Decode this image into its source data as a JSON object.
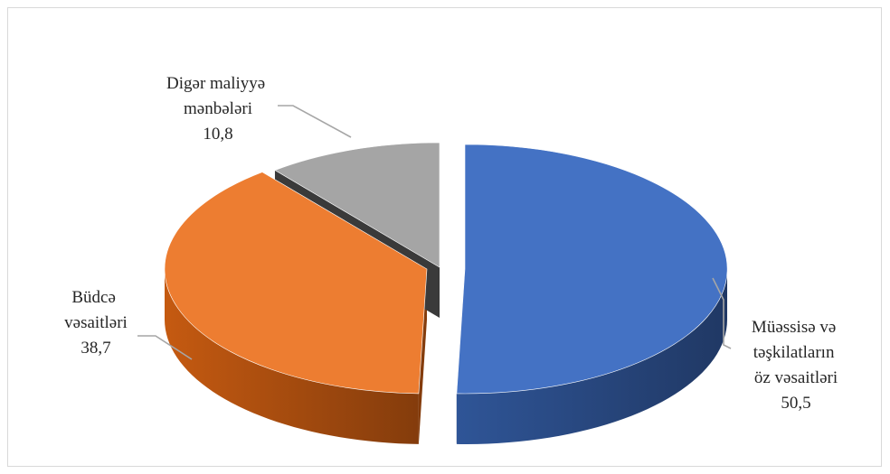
{
  "chart_data": {
    "type": "pie",
    "style": "3d-exploded",
    "title": "",
    "slices": [
      {
        "label_lines": [
          "Müəssisə və",
          "təşkilatların",
          "öz vəsaitləri"
        ],
        "value": 50.5,
        "value_text": "50,5",
        "color": "#4472c4",
        "side_color": "#203864",
        "side_color_light": "#2f5597"
      },
      {
        "label_lines": [
          "Büdcə",
          "vəsaitləri"
        ],
        "value": 38.7,
        "value_text": "38,7",
        "color": "#ed7d31",
        "side_color": "#843c0c",
        "side_color_light": "#c55a11"
      },
      {
        "label_lines": [
          "Digər  maliyyə",
          "mənbələri"
        ],
        "value": 10.8,
        "value_text": "10,8",
        "color": "#a5a5a5",
        "side_color": "#3a3a3a",
        "side_color_light": "#595959"
      }
    ],
    "leader_line_color": "#a6a6a6"
  }
}
